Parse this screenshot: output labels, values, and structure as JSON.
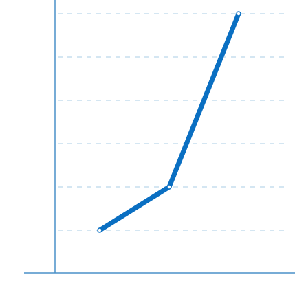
{
  "chart_data": {
    "type": "line",
    "x": [
      1,
      2,
      3
    ],
    "series": [
      {
        "values": [
          1,
          2,
          6
        ]
      }
    ],
    "title": "",
    "xlabel": "",
    "ylabel": "",
    "xlim": [
      0.35,
      3.8
    ],
    "ylim": [
      0,
      6
    ],
    "grid": true,
    "gridlines_y": [
      1,
      2,
      3,
      4,
      5,
      6
    ],
    "colors": {
      "line": "#0a6fc2",
      "axis": "#4a90c8",
      "grid": "#a9cde6",
      "marker_fill": "#ffffff"
    }
  }
}
